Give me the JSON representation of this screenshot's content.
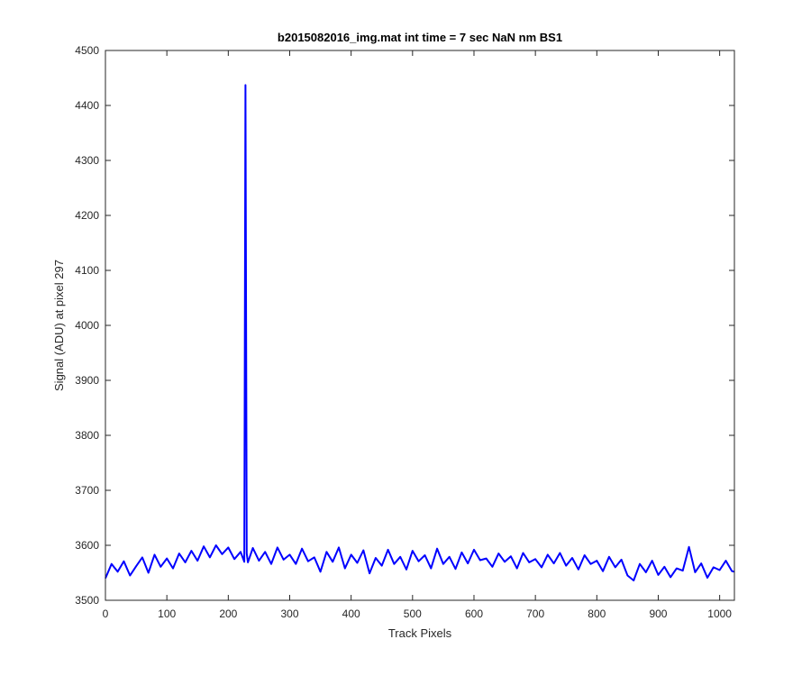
{
  "chart_data": {
    "type": "line",
    "title": "b2015082016_img.mat int time = 7 sec  NaN nm BS1",
    "xlabel": "Track Pixels",
    "ylabel": "Signal (ADU) at pixel 297",
    "xlim": [
      0,
      1024
    ],
    "ylim": [
      3500,
      4500
    ],
    "xticks": [
      "0",
      "100",
      "200",
      "300",
      "400",
      "500",
      "600",
      "700",
      "800",
      "900",
      "1000"
    ],
    "yticks": [
      "3500",
      "3600",
      "3700",
      "3800",
      "3900",
      "4000",
      "4100",
      "4200",
      "4300",
      "4400",
      "4500"
    ],
    "grid": false,
    "line_color": "#0000ff",
    "series": [
      {
        "x": [
          0,
          10,
          20,
          30,
          40,
          50,
          60,
          70,
          80,
          90,
          100,
          110,
          120,
          130,
          140,
          150,
          160,
          170,
          180,
          190,
          200,
          210,
          220,
          226,
          228,
          230,
          232,
          240,
          250,
          260,
          270,
          280,
          290,
          300,
          310,
          320,
          330,
          340,
          350,
          360,
          370,
          380,
          390,
          400,
          410,
          420,
          430,
          440,
          450,
          460,
          470,
          480,
          490,
          500,
          510,
          520,
          530,
          540,
          550,
          560,
          570,
          580,
          590,
          600,
          610,
          620,
          630,
          640,
          650,
          660,
          670,
          680,
          690,
          700,
          710,
          720,
          730,
          740,
          750,
          760,
          770,
          780,
          790,
          800,
          810,
          820,
          830,
          840,
          850,
          860,
          870,
          880,
          890,
          900,
          910,
          920,
          930,
          940,
          950,
          960,
          970,
          980,
          990,
          1000,
          1010,
          1020,
          1024
        ],
        "y": [
          3540,
          3566,
          3552,
          3571,
          3545,
          3562,
          3578,
          3550,
          3583,
          3561,
          3576,
          3558,
          3585,
          3569,
          3590,
          3572,
          3598,
          3578,
          3600,
          3584,
          3596,
          3575,
          3588,
          3570,
          4437,
          3585,
          3569,
          3595,
          3572,
          3588,
          3566,
          3596,
          3574,
          3583,
          3566,
          3594,
          3571,
          3578,
          3552,
          3588,
          3570,
          3596,
          3558,
          3583,
          3568,
          3591,
          3549,
          3577,
          3563,
          3592,
          3566,
          3579,
          3556,
          3590,
          3571,
          3582,
          3558,
          3594,
          3566,
          3579,
          3557,
          3587,
          3567,
          3592,
          3573,
          3576,
          3561,
          3585,
          3570,
          3580,
          3558,
          3586,
          3569,
          3575,
          3560,
          3583,
          3567,
          3586,
          3563,
          3577,
          3556,
          3582,
          3566,
          3572,
          3553,
          3579,
          3560,
          3574,
          3545,
          3536,
          3566,
          3551,
          3572,
          3546,
          3561,
          3542,
          3558,
          3554,
          3597,
          3551,
          3567,
          3541,
          3560,
          3555,
          3572,
          3553,
          3552
        ]
      }
    ]
  }
}
